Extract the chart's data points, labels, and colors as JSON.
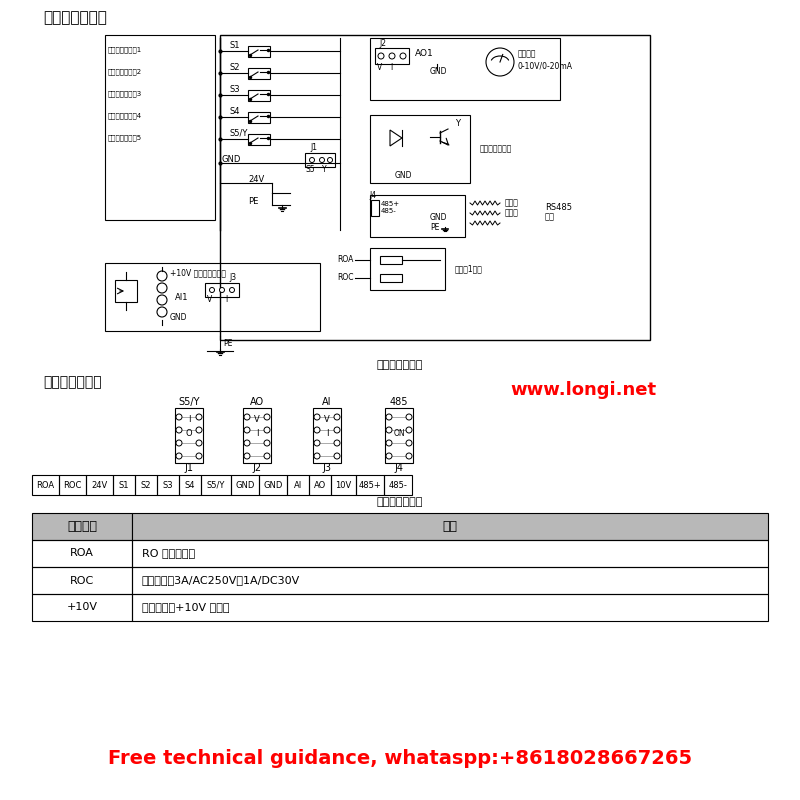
{
  "bg_color": "#ffffff",
  "title_top": "控制回路接线图",
  "title_bottom_circuit": "控制回路接线图",
  "title_terminal": "控制端子示意图",
  "title_terminal_bottom": "控制端子示意图",
  "website": "www.longi.net",
  "footer": "Free technical guidance, whataspp:+8618028667265",
  "table_header": [
    "端子名称",
    "说明"
  ],
  "table_rows": [
    [
      "ROA",
      "RO 继电器输出"
    ],
    [
      "ROC",
      "触点容量：3A/AC250V，1A/DC30V"
    ],
    [
      "+10V",
      "本机提供的+10V 电源。"
    ]
  ],
  "terminal_labels": [
    "ROA",
    "ROC",
    "24V",
    "S1",
    "S2",
    "S3",
    "S4",
    "S5/Y",
    "GND",
    "GND",
    "AI",
    "AO",
    "10V",
    "485+",
    "485-"
  ],
  "connector_labels": [
    "S5/Y",
    "AO",
    "AI",
    "485"
  ],
  "connector_ids": [
    "J1",
    "J2",
    "J3",
    "J4"
  ],
  "input_labels": [
    "多功能输入端子1",
    "多功能输入端子2",
    "多功能输入端子3",
    "多功能输入端子4",
    "多功能输入端子5"
  ],
  "switch_labels": [
    "S1",
    "S2",
    "S3",
    "S4",
    "S5/Y"
  ],
  "analog_label": "模拟输出",
  "analog_label2": "0-10V/0-20mA",
  "open_collector_label": "集电极开路输出",
  "rs485_label": "RS485",
  "rs485_label2": "通讯",
  "relay_label": "继电器1输出",
  "twisted_label": "双绞线",
  "shield_label": "屏蔽线",
  "voltage_label": "+10V 频率设定用电源"
}
